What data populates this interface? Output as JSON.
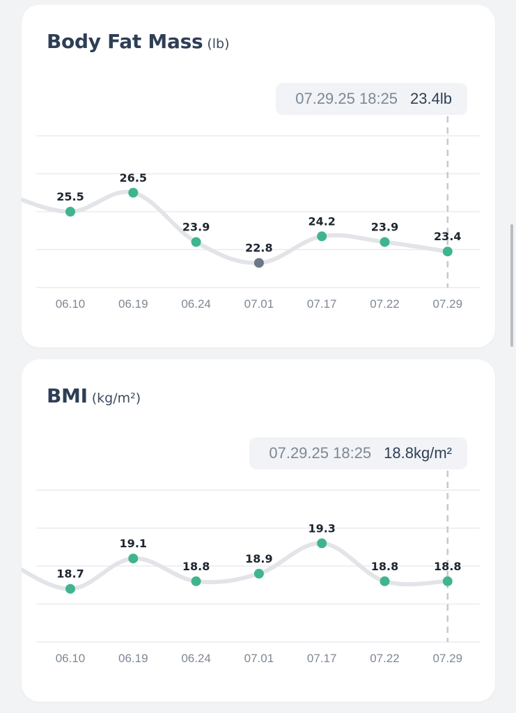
{
  "colors": {
    "point": "#3fb58f",
    "point_selected": "#6c7789",
    "line": "#e2e4e8",
    "grid": "#e9ebee",
    "cursor": "#c5c8cc"
  },
  "cards": [
    {
      "title": "Body Fat Mass",
      "unit": "(lb)",
      "tooltip": {
        "date": "07.29.25 18:25",
        "value": "23.4lb"
      }
    },
    {
      "title": "BMI",
      "unit": "(kg/m²)",
      "tooltip": {
        "date": "07.29.25 18:25",
        "value": "18.8kg/m²"
      }
    }
  ],
  "chart_data": [
    {
      "type": "line",
      "x": [
        "06.10",
        "06.19",
        "06.24",
        "07.01",
        "07.17",
        "07.22",
        "07.29"
      ],
      "series": [
        {
          "values": [
            25.5,
            26.5,
            23.9,
            22.8,
            24.2,
            23.9,
            23.4
          ]
        }
      ],
      "ylim": [
        21.5,
        29.5
      ],
      "grid": true,
      "selected_index": 3,
      "cursor_index": 6
    },
    {
      "type": "line",
      "x": [
        "06.10",
        "06.19",
        "06.24",
        "07.01",
        "07.17",
        "07.22",
        "07.29"
      ],
      "series": [
        {
          "values": [
            18.7,
            19.1,
            18.8,
            18.9,
            19.3,
            18.8,
            18.8
          ]
        }
      ],
      "ylim": [
        18.0,
        20.0
      ],
      "grid": true,
      "selected_index": null,
      "cursor_index": 6
    }
  ]
}
